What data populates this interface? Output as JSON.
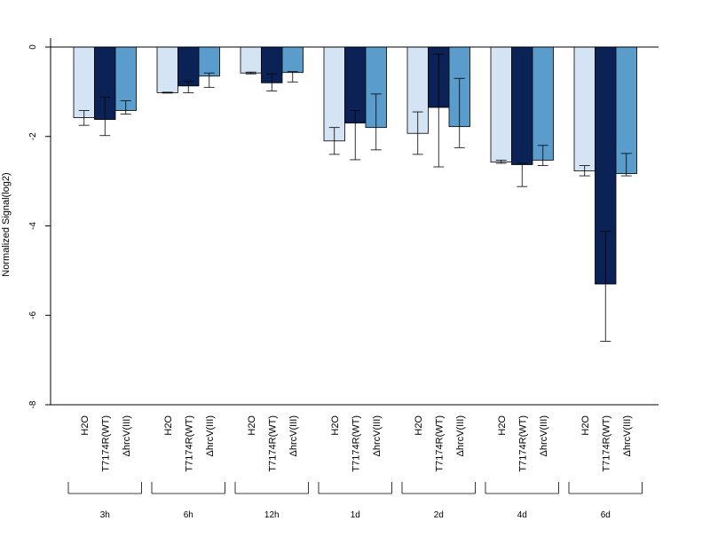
{
  "chart_data": {
    "type": "bar",
    "title": "",
    "xlabel": "",
    "ylabel": "Normalized Signal(log2)",
    "ylim": [
      -8,
      0
    ],
    "yticks": [
      0,
      -2,
      -4,
      -6,
      -8
    ],
    "ytick_labels": [
      "0",
      "-2",
      "-4",
      "-6",
      "-8"
    ],
    "groups": [
      "3h",
      "6h",
      "12h",
      "1d",
      "2d",
      "4d",
      "6d"
    ],
    "series": [
      {
        "name": "H2O",
        "color": "#d5e4f4",
        "values": [
          -1.58,
          -1.02,
          -0.58,
          -2.1,
          -1.93,
          -2.57,
          -2.77
        ],
        "error_low": [
          -1.75,
          -1.03,
          -0.6,
          -2.4,
          -2.4,
          -2.6,
          -2.88
        ],
        "error_high": [
          -1.42,
          -1.01,
          -0.56,
          -1.8,
          -1.45,
          -2.53,
          -2.65
        ]
      },
      {
        "name": "T7174R(WT)",
        "color": "#0b2257",
        "values": [
          -1.62,
          -0.87,
          -0.8,
          -1.7,
          -1.35,
          -2.63,
          -5.3
        ],
        "error_low": [
          -1.98,
          -1.02,
          -0.98,
          -2.52,
          -2.68,
          -3.12,
          -6.58
        ],
        "error_high": [
          -1.12,
          -0.77,
          -0.6,
          -1.42,
          -0.16,
          -2.6,
          -4.12
        ]
      },
      {
        "name": "ΔhrcV(III)",
        "color": "#5a9ccb",
        "values": [
          -1.42,
          -0.65,
          -0.57,
          -1.8,
          -1.78,
          -2.53,
          -2.83
        ],
        "error_low": [
          -1.5,
          -0.9,
          -0.78,
          -2.3,
          -2.25,
          -2.65,
          -2.88
        ],
        "error_high": [
          -1.2,
          -0.58,
          -0.55,
          -1.05,
          -0.7,
          -2.2,
          -2.38
        ]
      }
    ],
    "grid": false,
    "legend": "none"
  }
}
